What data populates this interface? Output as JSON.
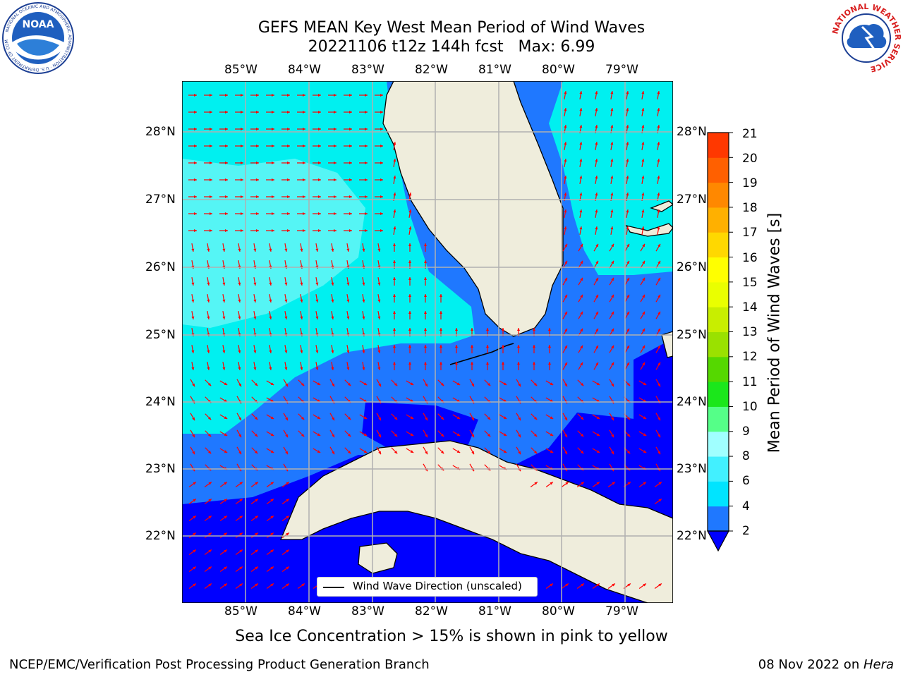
{
  "title_line1": "GEFS MEAN Key West Mean Period of Wind Waves",
  "title_line2": "20221106 t12z 144h fcst   Max: 6.99",
  "noaa_logo_text": "NOAA",
  "noaa_ring_text": "NATIONAL OCEANIC AND ATMOSPHERIC ADMINISTRATION · U.S. DEPARTMENT OF COMMERCE",
  "nws_ring_text": "NATIONAL WEATHER SERVICE",
  "lon_labels": [
    "85°W",
    "84°W",
    "83°W",
    "82°W",
    "81°W",
    "80°W",
    "79°W"
  ],
  "lat_labels": [
    "28°N",
    "27°N",
    "26°N",
    "25°N",
    "24°N",
    "23°N",
    "22°N"
  ],
  "legend_label": "Wind Wave Direction (unscaled)",
  "colorbar": {
    "label": "Mean Period of Wind Waves [s]",
    "ticks": [
      "2",
      "4",
      "6",
      "8",
      "9",
      "10",
      "11",
      "12",
      "13",
      "14",
      "15",
      "16",
      "17",
      "18",
      "19",
      "20",
      "21"
    ],
    "colors": [
      "#1f78ff",
      "#00e4ff",
      "#42f0ff",
      "#a0ffff",
      "#55ff88",
      "#1be71b",
      "#55d800",
      "#9ae100",
      "#c8ee00",
      "#eaff00",
      "#ffff00",
      "#ffd800",
      "#ffb000",
      "#ff8800",
      "#ff6000",
      "#ff3800",
      "#ff0000"
    ],
    "under_color": "#0000ff"
  },
  "fill_colors": {
    "land": "#efeddc",
    "dark_blue": "#0000ff",
    "mid_blue": "#1f78ff",
    "cyan": "#00f0f0",
    "light_cyan": "#55f5f5",
    "arrow": "#ff0000",
    "grid": "#b0b0b0"
  },
  "sea_ice_note": "Sea Ice Concentration > 15% is shown in pink to yellow",
  "footer_left": "NCEP/EMC/Verification Post Processing Product Generation Branch",
  "footer_date": "08 Nov 2022 on ",
  "footer_host": "Hera"
}
